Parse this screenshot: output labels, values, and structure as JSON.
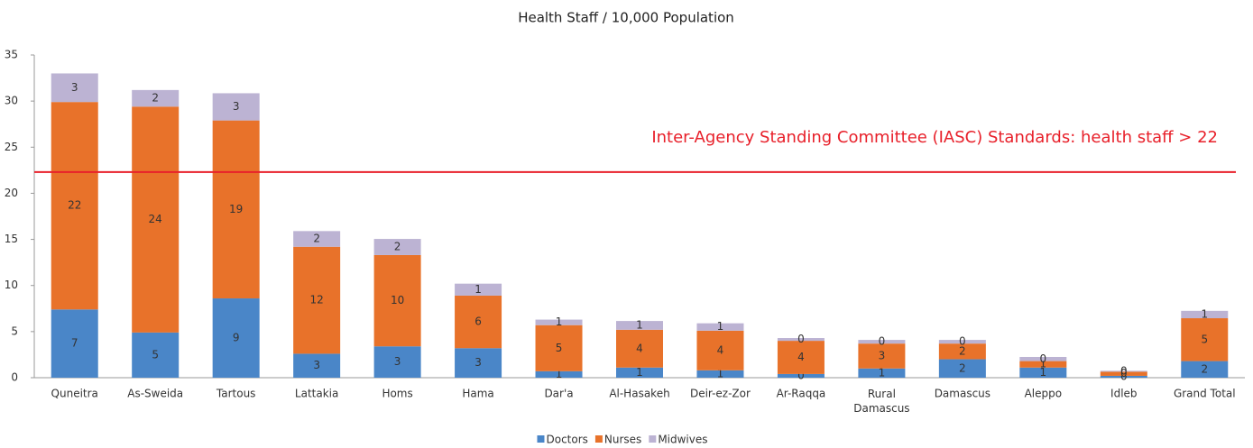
{
  "chart_data": {
    "type": "stacked_bar",
    "title": "Health Staff / 10,000 Population",
    "categories": [
      "Quneitra",
      "As-Sweida",
      "Tartous",
      "Lattakia",
      "Homs",
      "Hama",
      "Dar'a",
      "Al-Hasakeh",
      "Deir-ez-Zor",
      "Ar-Raqqa",
      "Rural\nDamascus",
      "Damascus",
      "Aleppo",
      "Idleb",
      "Grand Total"
    ],
    "series": [
      {
        "name": "Doctors",
        "color": "#4a86c8",
        "values": [
          7.4,
          4.9,
          8.6,
          2.6,
          3.4,
          3.2,
          0.7,
          1.1,
          0.8,
          0.4,
          1.0,
          2.0,
          1.1,
          0.2,
          1.8
        ],
        "value_labels": [
          "7",
          "5",
          "9",
          "3",
          "3",
          "3",
          "1",
          "1",
          "1",
          "0",
          "1",
          "2",
          "1",
          "0",
          "2"
        ]
      },
      {
        "name": "Nurses",
        "color": "#e8722a",
        "values": [
          22.5,
          24.5,
          19.3,
          11.6,
          9.9,
          5.7,
          5.0,
          4.1,
          4.3,
          3.6,
          2.7,
          1.7,
          0.7,
          0.45,
          4.65
        ],
        "value_labels": [
          "22",
          "24",
          "19",
          "12",
          "10",
          "6",
          "5",
          "4",
          "4",
          "4",
          "3",
          "2",
          "1",
          "0",
          "5"
        ]
      },
      {
        "name": "Midwives",
        "color": "#bcb3d3",
        "values": [
          3.1,
          1.8,
          2.95,
          1.7,
          1.75,
          1.3,
          0.6,
          0.95,
          0.8,
          0.3,
          0.4,
          0.4,
          0.45,
          0.1,
          0.8
        ],
        "value_labels": [
          "3",
          "2",
          "3",
          "2",
          "2",
          "1",
          "1",
          "1",
          "1",
          "0",
          "0",
          "0",
          "0",
          "0",
          "1"
        ]
      }
    ],
    "ylim": [
      0,
      35
    ],
    "yticks": [
      0,
      5,
      10,
      15,
      20,
      25,
      30,
      35
    ],
    "reference_line": {
      "value": 22.3,
      "color": "#e8202a",
      "label": "Inter-Agency Standing Committee (IASC) Standards: health staff > 22"
    },
    "legend": "bottom"
  }
}
